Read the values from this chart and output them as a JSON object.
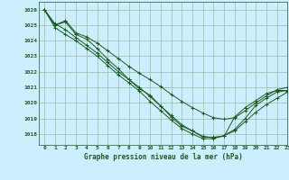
{
  "bg_color": "#cceeff",
  "grid_color": "#99bb99",
  "line_color": "#1a5c1a",
  "xlabel": "Graphe pression niveau de la mer (hPa)",
  "ylabel_ticks": [
    1018,
    1019,
    1020,
    1021,
    1022,
    1023,
    1024,
    1025,
    1026
  ],
  "xlim": [
    -0.5,
    23
  ],
  "ylim": [
    1017.3,
    1026.5
  ],
  "series": [
    [
      1026.0,
      1025.0,
      1025.2,
      1024.4,
      1024.1,
      1023.5,
      1022.8,
      1022.2,
      1021.5,
      1020.9,
      1020.5,
      1019.8,
      1019.1,
      1018.5,
      1018.2,
      1017.8,
      1017.8,
      1017.85,
      1019.1,
      1019.7,
      1020.15,
      1020.6,
      1020.8,
      1020.8
    ],
    [
      1026.0,
      1025.1,
      1024.7,
      1024.2,
      1023.7,
      1023.2,
      1022.6,
      1022.0,
      1021.5,
      1021.0,
      1020.4,
      1019.8,
      1019.2,
      1018.6,
      1018.2,
      1017.85,
      1017.75,
      1017.9,
      1018.2,
      1018.8,
      1019.4,
      1019.9,
      1020.3,
      1020.7
    ],
    [
      1026.0,
      1024.85,
      1024.4,
      1024.0,
      1023.5,
      1023.0,
      1022.4,
      1021.8,
      1021.3,
      1020.75,
      1020.1,
      1019.5,
      1018.9,
      1018.35,
      1018.0,
      1017.7,
      1017.7,
      1017.9,
      1018.3,
      1019.0,
      1019.85,
      1020.3,
      1020.7,
      1020.8
    ],
    [
      1026.0,
      1025.0,
      1025.3,
      1024.5,
      1024.25,
      1023.85,
      1023.35,
      1022.85,
      1022.35,
      1021.9,
      1021.5,
      1021.05,
      1020.55,
      1020.1,
      1019.7,
      1019.35,
      1019.05,
      1018.95,
      1019.05,
      1019.5,
      1020.0,
      1020.45,
      1020.85,
      1021.0
    ]
  ]
}
